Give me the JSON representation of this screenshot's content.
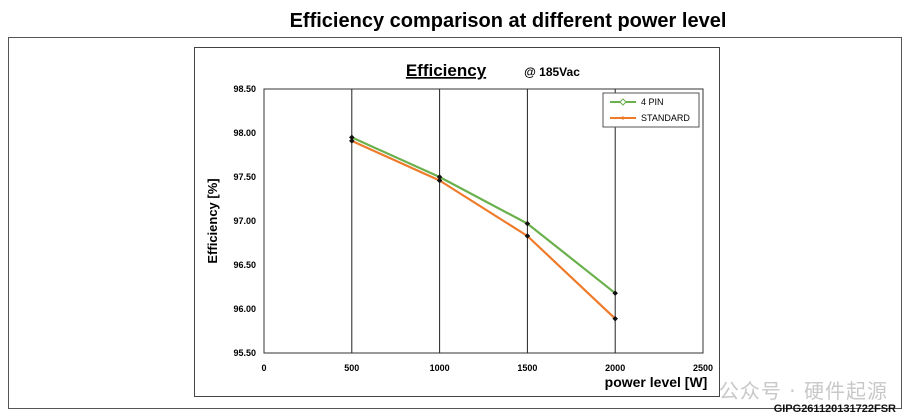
{
  "page": {
    "title": "Efficiency comparison at different power level",
    "footer_code": "GIPG261120131722FSR",
    "watermark": "公众号 · 硬件起源"
  },
  "chart_data": {
    "type": "line",
    "title": "Efficiency",
    "subtitle": "@ 185Vac",
    "xlabel": "power level [W]",
    "ylabel": "Efficiency [%]",
    "xlim": [
      0,
      2500
    ],
    "ylim": [
      95.5,
      98.5
    ],
    "x_ticks": [
      0,
      500,
      1000,
      1500,
      2000,
      2500
    ],
    "y_ticks": [
      95.5,
      96.0,
      96.5,
      97.0,
      97.5,
      98.0,
      98.5
    ],
    "x_tick_labels": [
      "0",
      "500",
      "1000",
      "1500",
      "2000",
      "2500"
    ],
    "y_tick_labels": [
      "95.50",
      "96.00",
      "96.50",
      "97.00",
      "97.50",
      "98.00",
      "98.50"
    ],
    "grid": "vertical",
    "legend_position": "top-right",
    "series": [
      {
        "name": "4 PIN",
        "color": "#6ab04c",
        "x": [
          500,
          1000,
          1500,
          2000
        ],
        "y": [
          97.95,
          97.5,
          96.97,
          96.18
        ]
      },
      {
        "name": "STANDARD",
        "color": "#ee7a2a",
        "x": [
          500,
          1000,
          1500,
          2000
        ],
        "y": [
          97.91,
          97.46,
          96.83,
          95.89
        ]
      }
    ]
  }
}
